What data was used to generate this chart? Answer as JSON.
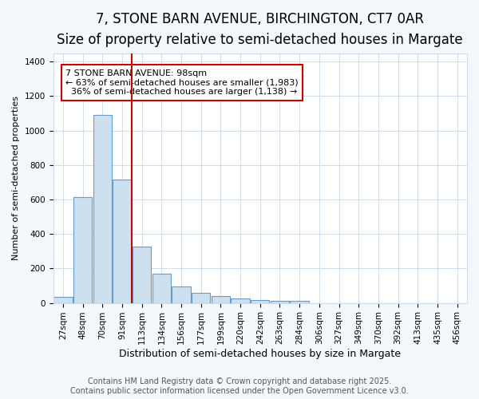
{
  "title_line1": "7, STONE BARN AVENUE, BIRCHINGTON, CT7 0AR",
  "title_line2": "Size of property relative to semi-detached houses in Margate",
  "xlabel": "Distribution of semi-detached houses by size in Margate",
  "ylabel": "Number of semi-detached properties",
  "categories": [
    "27sqm",
    "48sqm",
    "70sqm",
    "91sqm",
    "113sqm",
    "134sqm",
    "156sqm",
    "177sqm",
    "199sqm",
    "220sqm",
    "242sqm",
    "263sqm",
    "284sqm",
    "306sqm",
    "327sqm",
    "349sqm",
    "370sqm",
    "392sqm",
    "413sqm",
    "435sqm",
    "456sqm"
  ],
  "values": [
    35,
    615,
    1090,
    715,
    325,
    170,
    95,
    60,
    40,
    25,
    15,
    10,
    10,
    0,
    0,
    0,
    0,
    0,
    0,
    0,
    0
  ],
  "bar_color": "#cce0f0",
  "bar_edge_color": "#6699cc",
  "red_line_color": "#cc0000",
  "annotation_box_color": "#cc0000",
  "annotation_text_color": "#000000",
  "property_line_idx": 3,
  "property_label": "7 STONE BARN AVENUE: 98sqm",
  "smaller_pct": "63%",
  "smaller_count": "1,983",
  "larger_pct": "36%",
  "larger_count": "1,138",
  "footer_line1": "Contains HM Land Registry data © Crown copyright and database right 2025.",
  "footer_line2": "Contains public sector information licensed under the Open Government Licence v3.0.",
  "ylim": [
    0,
    1450
  ],
  "background_color": "#f4f8fc",
  "plot_background": "#ffffff",
  "grid_color": "#ccddee",
  "title_fontsize": 12,
  "subtitle_fontsize": 9,
  "xlabel_fontsize": 9,
  "ylabel_fontsize": 8,
  "tick_fontsize": 7.5,
  "footer_fontsize": 7,
  "annotation_fontsize": 8
}
